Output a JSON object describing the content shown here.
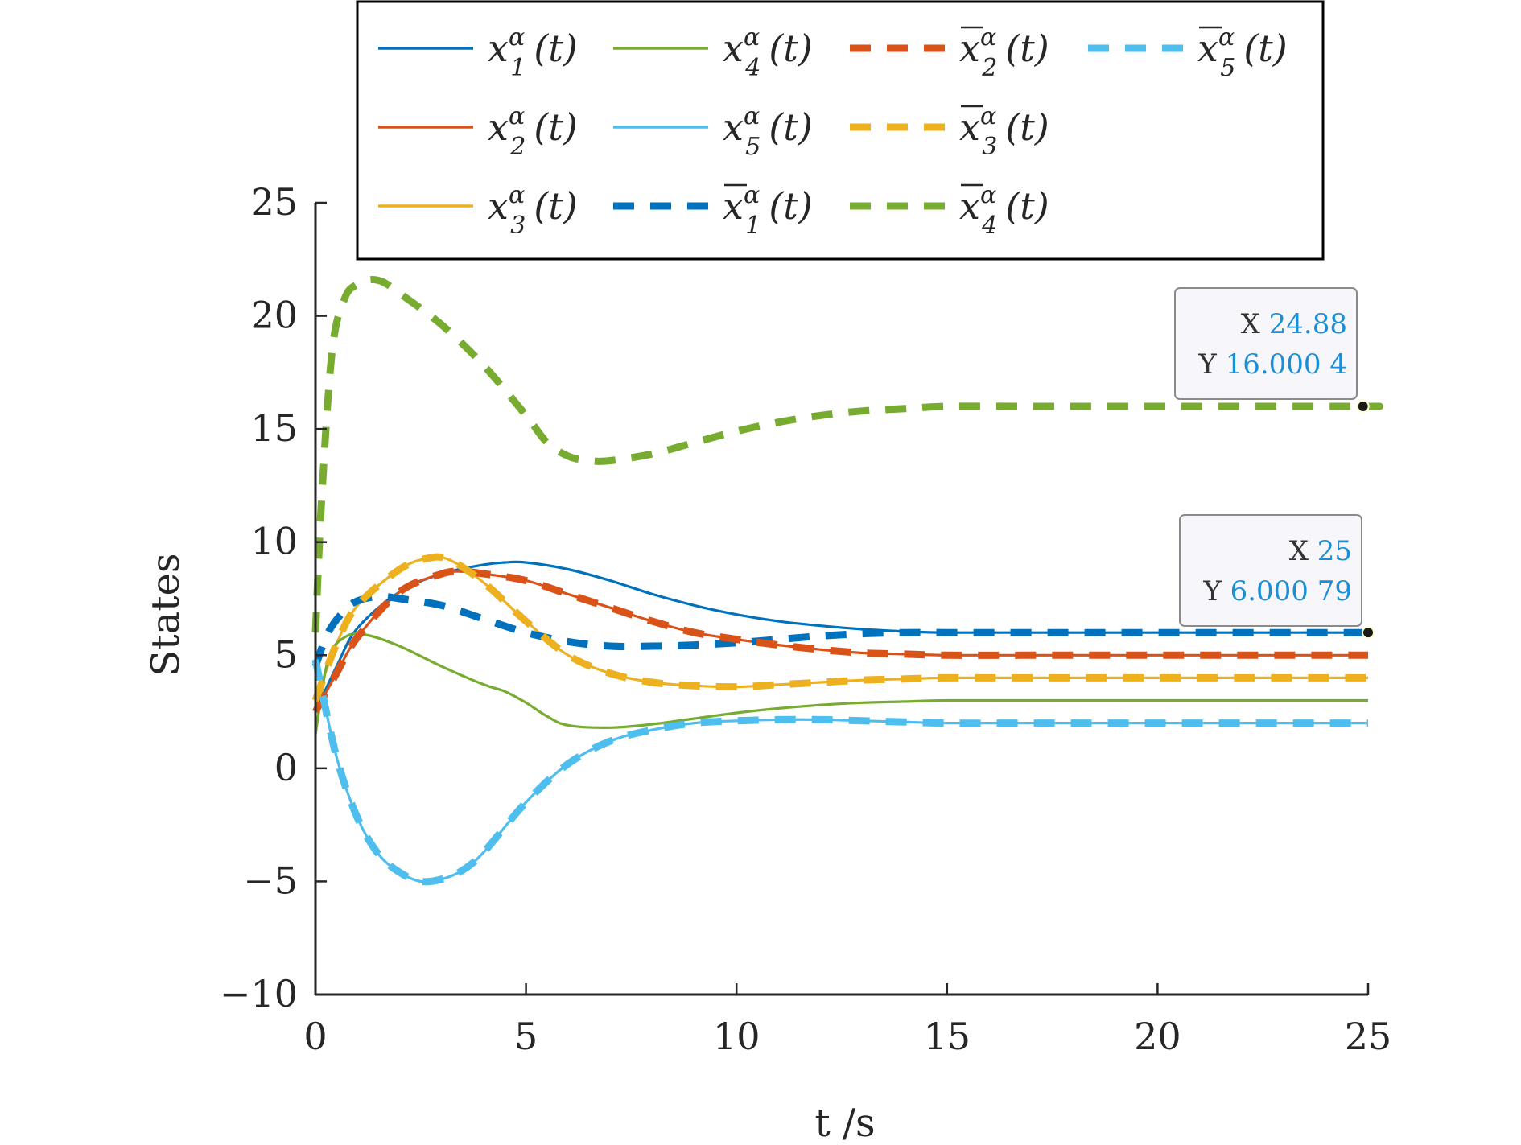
{
  "chart_data": {
    "type": "line",
    "xlabel": "t /s",
    "ylabel": "States",
    "xlim": [
      0,
      25
    ],
    "ylim": [
      -10,
      25
    ],
    "xticks": [
      0,
      5,
      10,
      15,
      20,
      25
    ],
    "yticks": [
      -10,
      -5,
      0,
      5,
      10,
      15,
      20,
      25
    ],
    "xtick_labels": [
      "0",
      "5",
      "10",
      "15",
      "20",
      "25"
    ],
    "ytick_labels": [
      "−10",
      "−5",
      "0",
      "5",
      "10",
      "15",
      "20",
      "25"
    ],
    "grid": false,
    "legend_position": "top",
    "series": [
      {
        "name": "x₁ᵅ(t)",
        "style": "solid",
        "color": "#0072BD",
        "x": [
          0,
          0.5,
          1,
          2,
          3,
          4,
          4.5,
          5,
          6,
          7,
          8,
          9,
          10,
          11,
          12,
          13,
          14,
          15,
          17,
          20,
          25
        ],
        "y": [
          2.5,
          4.5,
          6.2,
          7.8,
          8.6,
          9.0,
          9.1,
          9.1,
          8.8,
          8.3,
          7.7,
          7.2,
          6.8,
          6.5,
          6.3,
          6.15,
          6.05,
          6.0,
          6.0,
          6.0,
          6.0
        ]
      },
      {
        "name": "x₂ᵅ(t)",
        "style": "solid",
        "color": "#D95319",
        "x": [
          0,
          0.5,
          1,
          2,
          3,
          3.5,
          4,
          5,
          6,
          7,
          8,
          9,
          10,
          11,
          12,
          13,
          14,
          15,
          17,
          20,
          25
        ],
        "y": [
          2.5,
          4.2,
          5.8,
          7.8,
          8.6,
          8.7,
          8.6,
          8.3,
          7.7,
          7.1,
          6.5,
          6.0,
          5.7,
          5.45,
          5.25,
          5.1,
          5.05,
          5.0,
          5.0,
          5.0,
          5.0
        ]
      },
      {
        "name": "x₃ᵅ(t)",
        "style": "solid",
        "color": "#EDB120",
        "x": [
          0,
          0.5,
          1,
          2,
          2.7,
          3.2,
          4,
          5,
          6,
          7,
          8,
          9,
          10,
          11,
          12,
          13,
          14,
          15,
          17,
          20,
          25
        ],
        "y": [
          3.0,
          5.5,
          7.2,
          8.8,
          9.3,
          9.2,
          8.2,
          6.5,
          5.0,
          4.2,
          3.8,
          3.65,
          3.6,
          3.7,
          3.8,
          3.9,
          3.95,
          4.0,
          4.0,
          4.0,
          4.0
        ]
      },
      {
        "name": "x₄ᵅ(t)",
        "style": "solid",
        "color": "#77AC30",
        "x": [
          0,
          0.3,
          0.7,
          1.2,
          2,
          3,
          4,
          4.5,
          5,
          5.5,
          6,
          7,
          8,
          9,
          10,
          11,
          12,
          13,
          14,
          15,
          17,
          20,
          25
        ],
        "y": [
          1.5,
          4.8,
          5.8,
          5.9,
          5.4,
          4.5,
          3.7,
          3.4,
          2.9,
          2.3,
          1.9,
          1.8,
          1.95,
          2.2,
          2.45,
          2.65,
          2.8,
          2.9,
          2.95,
          3.0,
          3.0,
          3.0,
          3.0
        ]
      },
      {
        "name": "x₅ᵅ(t)",
        "style": "solid",
        "color": "#4DBEEE",
        "x": [
          0,
          0.5,
          1,
          1.5,
          2,
          2.5,
          3,
          3.5,
          4,
          5,
          6,
          7,
          8,
          9,
          10,
          11,
          12,
          13,
          14,
          15,
          17,
          20,
          25
        ],
        "y": [
          4.8,
          0.5,
          -2.2,
          -3.8,
          -4.6,
          -5.0,
          -4.9,
          -4.5,
          -3.7,
          -1.5,
          0.2,
          1.2,
          1.7,
          2.0,
          2.1,
          2.15,
          2.15,
          2.1,
          2.05,
          2.0,
          2.0,
          2.0,
          2.0
        ]
      },
      {
        "name": "x̄₁ᵅ(t)",
        "style": "dashed",
        "color": "#0072BD",
        "x": [
          0,
          0.3,
          0.7,
          1,
          1.5,
          2,
          3,
          4,
          5,
          6,
          7,
          8,
          9,
          10,
          11,
          12,
          13,
          14,
          15,
          17,
          20,
          25
        ],
        "y": [
          4.5,
          6.0,
          7.0,
          7.4,
          7.6,
          7.5,
          7.2,
          6.6,
          6.0,
          5.6,
          5.4,
          5.4,
          5.45,
          5.55,
          5.7,
          5.85,
          5.95,
          6.0,
          6.0,
          6.0,
          6.0,
          6.0
        ]
      },
      {
        "name": "x̄₂ᵅ(t)",
        "style": "dashed",
        "color": "#D95319",
        "x": [
          0,
          0.5,
          1,
          2,
          3,
          3.5,
          4,
          5,
          6,
          7,
          8,
          9,
          10,
          11,
          12,
          13,
          14,
          15,
          17,
          20,
          25
        ],
        "y": [
          2.5,
          4.2,
          5.8,
          7.8,
          8.6,
          8.7,
          8.6,
          8.3,
          7.7,
          7.1,
          6.5,
          6.0,
          5.7,
          5.45,
          5.25,
          5.1,
          5.05,
          5.0,
          5.0,
          5.0,
          5.0
        ]
      },
      {
        "name": "x̄₃ᵅ(t)",
        "style": "dashed",
        "color": "#EDB120",
        "x": [
          0,
          0.5,
          1,
          2,
          2.7,
          3.2,
          4,
          5,
          6,
          7,
          8,
          9,
          10,
          11,
          12,
          13,
          14,
          15,
          17,
          20,
          25
        ],
        "y": [
          3.0,
          5.5,
          7.2,
          8.8,
          9.3,
          9.2,
          8.2,
          6.5,
          5.0,
          4.2,
          3.8,
          3.65,
          3.6,
          3.7,
          3.8,
          3.9,
          3.95,
          4.0,
          4.0,
          4.0,
          4.0
        ]
      },
      {
        "name": "x̄₄ᵅ(t)",
        "style": "dashed",
        "color": "#77AC30",
        "x": [
          0,
          0.15,
          0.4,
          0.7,
          1,
          1.3,
          1.6,
          2,
          3,
          4,
          5,
          5.5,
          6,
          6.5,
          7,
          8,
          9,
          10,
          11,
          12,
          13,
          14,
          15,
          17,
          20,
          24.88,
          25
        ],
        "y": [
          6.0,
          12.0,
          18.5,
          20.8,
          21.4,
          21.6,
          21.5,
          21.0,
          19.6,
          17.8,
          15.6,
          14.4,
          13.8,
          13.6,
          13.6,
          13.9,
          14.4,
          14.9,
          15.3,
          15.6,
          15.8,
          15.9,
          16.0,
          16.0,
          16.0,
          16.0004,
          16.0
        ]
      },
      {
        "name": "x̄₅ᵅ(t)",
        "style": "dashed",
        "color": "#4DBEEE",
        "x": [
          0,
          0.5,
          1,
          1.5,
          2,
          2.5,
          3,
          3.5,
          4,
          5,
          6,
          7,
          8,
          9,
          10,
          11,
          12,
          13,
          14,
          15,
          17,
          20,
          25
        ],
        "y": [
          4.8,
          0.5,
          -2.2,
          -3.8,
          -4.6,
          -5.0,
          -4.9,
          -4.5,
          -3.7,
          -1.5,
          0.2,
          1.2,
          1.7,
          2.0,
          2.1,
          2.15,
          2.15,
          2.1,
          2.05,
          2.0,
          2.0,
          2.0,
          2.0
        ]
      }
    ],
    "legend": [
      {
        "base": "x",
        "sub": "1",
        "bar": false,
        "style": "solid",
        "color": "#0072BD"
      },
      {
        "base": "x",
        "sub": "4",
        "bar": false,
        "style": "solid",
        "color": "#77AC30"
      },
      {
        "base": "x",
        "sub": "2",
        "bar": true,
        "style": "dashed",
        "color": "#D95319"
      },
      {
        "base": "x",
        "sub": "5",
        "bar": true,
        "style": "dashed",
        "color": "#4DBEEE"
      },
      {
        "base": "x",
        "sub": "2",
        "bar": false,
        "style": "solid",
        "color": "#D95319"
      },
      {
        "base": "x",
        "sub": "5",
        "bar": false,
        "style": "solid",
        "color": "#4DBEEE"
      },
      {
        "base": "x",
        "sub": "3",
        "bar": true,
        "style": "dashed",
        "color": "#EDB120"
      },
      {
        "base": "x",
        "sub": "3",
        "bar": false,
        "style": "solid",
        "color": "#EDB120"
      },
      {
        "base": "x",
        "sub": "1",
        "bar": true,
        "style": "dashed",
        "color": "#0072BD"
      },
      {
        "base": "x",
        "sub": "4",
        "bar": true,
        "style": "dashed",
        "color": "#77AC30"
      }
    ],
    "legend_sup": "α",
    "legend_tail": "(t)",
    "datatips": [
      {
        "x_label": "X",
        "x_value": "24.88",
        "y_label": "Y",
        "y_value": "16.000 4",
        "x": 24.88,
        "y": 16.0004
      },
      {
        "x_label": "X",
        "x_value": "25",
        "y_label": "Y",
        "y_value": "6.000 79",
        "x": 25,
        "y": 6.00079
      }
    ]
  }
}
